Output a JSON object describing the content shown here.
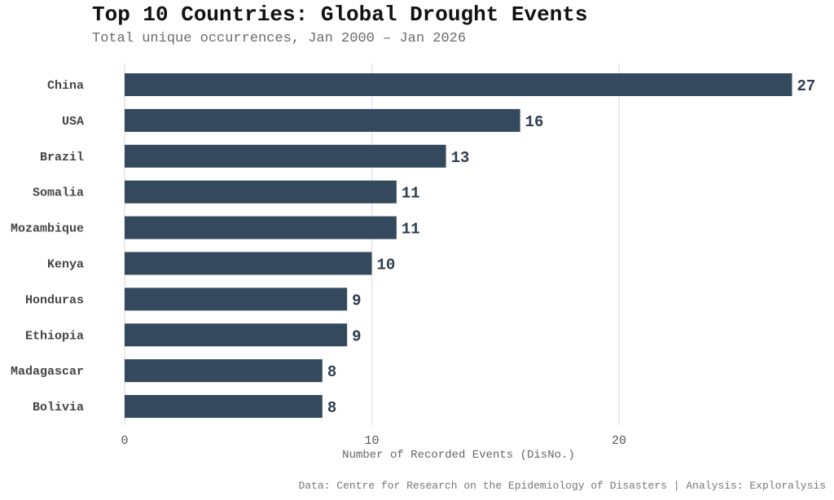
{
  "chart_data": {
    "type": "bar",
    "orientation": "horizontal",
    "title": "Top 10 Countries: Global Drought Events",
    "subtitle": "Total unique occurrences, Jan 2000 – Jan 2026",
    "caption": "Data: Centre for Research on the Epidemiology of Disasters | Analysis: Exploralysis",
    "xlabel": "Number of Recorded Events (DisNo.)",
    "ylabel": "",
    "categories": [
      "China",
      "USA",
      "Brazil",
      "Somalia",
      "Mozambique",
      "Kenya",
      "Honduras",
      "Ethiopia",
      "Madagascar",
      "Bolivia"
    ],
    "values": [
      27,
      16,
      13,
      11,
      11,
      10,
      9,
      9,
      8,
      8
    ],
    "xlim": [
      0,
      28.4
    ],
    "xticks": [
      0,
      10,
      20
    ],
    "xtick_labels": [
      "0",
      "10",
      "20"
    ],
    "grid": "vertical-major",
    "legend": "none",
    "bar_color": "#34495e",
    "label_color": "#2e3e50"
  }
}
